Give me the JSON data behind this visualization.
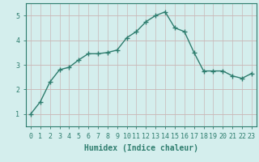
{
  "x": [
    0,
    1,
    2,
    3,
    4,
    5,
    6,
    7,
    8,
    9,
    10,
    11,
    12,
    13,
    14,
    15,
    16,
    17,
    18,
    19,
    20,
    21,
    22,
    23
  ],
  "y": [
    1.0,
    1.5,
    2.3,
    2.8,
    2.9,
    3.2,
    3.45,
    3.45,
    3.5,
    3.6,
    4.1,
    4.35,
    4.75,
    5.0,
    5.15,
    4.5,
    4.35,
    3.5,
    2.75,
    2.75,
    2.75,
    2.55,
    2.45,
    2.65
  ],
  "line_color": "#2e7d6e",
  "marker": "+",
  "marker_size": 5,
  "bg_color": "#d4eeed",
  "grid_color_h": "#c8a8a8",
  "grid_color_v": "#c8b8b8",
  "xlabel": "Humidex (Indice chaleur)",
  "xlim": [
    -0.5,
    23.5
  ],
  "ylim": [
    0.5,
    5.5
  ],
  "yticks": [
    1,
    2,
    3,
    4,
    5
  ],
  "xticks": [
    0,
    1,
    2,
    3,
    4,
    5,
    6,
    7,
    8,
    9,
    10,
    11,
    12,
    13,
    14,
    15,
    16,
    17,
    18,
    19,
    20,
    21,
    22,
    23
  ],
  "tick_fontsize": 6,
  "xlabel_fontsize": 7
}
